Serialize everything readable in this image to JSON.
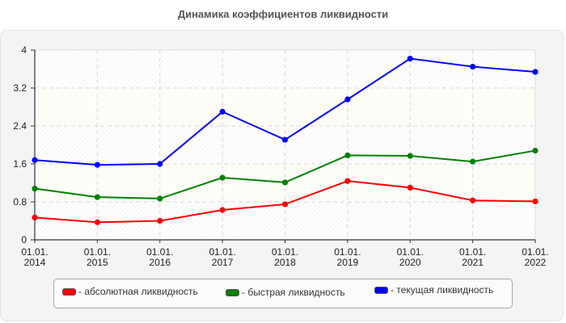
{
  "title": "Динамика коэффициентов ликвидности",
  "chart_data": {
    "type": "line",
    "title": "Динамика коэффициентов ликвидности",
    "xlabel": "",
    "ylabel": "",
    "categories": [
      "01.01.2014",
      "01.01.2015",
      "01.01.2016",
      "01.01.2017",
      "01.01.2018",
      "01.01.2019",
      "01.01.2020",
      "01.01.2021",
      "01.01.2022"
    ],
    "x_tick_lines": [
      [
        "01.01.",
        "2014"
      ],
      [
        "01.01.",
        "2015"
      ],
      [
        "01.01.",
        "2016"
      ],
      [
        "01.01.",
        "2017"
      ],
      [
        "01.01.",
        "2018"
      ],
      [
        "01.01.",
        "2019"
      ],
      [
        "01.01.",
        "2020"
      ],
      [
        "01.01.",
        "2021"
      ],
      [
        "01.01.",
        "2022"
      ]
    ],
    "y_ticks": [
      "0",
      "0.8",
      "1.6",
      "2.4",
      "3.2",
      "4"
    ],
    "ylim": [
      0,
      4
    ],
    "grid": true,
    "legend_position": "bottom",
    "series": [
      {
        "name": "абсолютная ликвидность",
        "color": "#ff0000",
        "values": [
          0.47,
          0.37,
          0.4,
          0.63,
          0.75,
          1.24,
          1.1,
          0.83,
          0.81
        ]
      },
      {
        "name": "быстрая ликвидность",
        "color": "#008000",
        "values": [
          1.08,
          0.9,
          0.87,
          1.31,
          1.21,
          1.78,
          1.77,
          1.65,
          1.88
        ]
      },
      {
        "name": "текущая ликвидность",
        "color": "#0000ff",
        "values": [
          1.68,
          1.58,
          1.6,
          2.7,
          2.11,
          2.96,
          3.82,
          3.65,
          3.54
        ]
      }
    ]
  },
  "legend": [
    {
      "label": "- абсолютная ликвидность",
      "color": "#ff0000"
    },
    {
      "label": "- быстрая ликвидность",
      "color": "#008000"
    },
    {
      "label": "- текущая ликвидность",
      "color": "#0000ff"
    }
  ]
}
